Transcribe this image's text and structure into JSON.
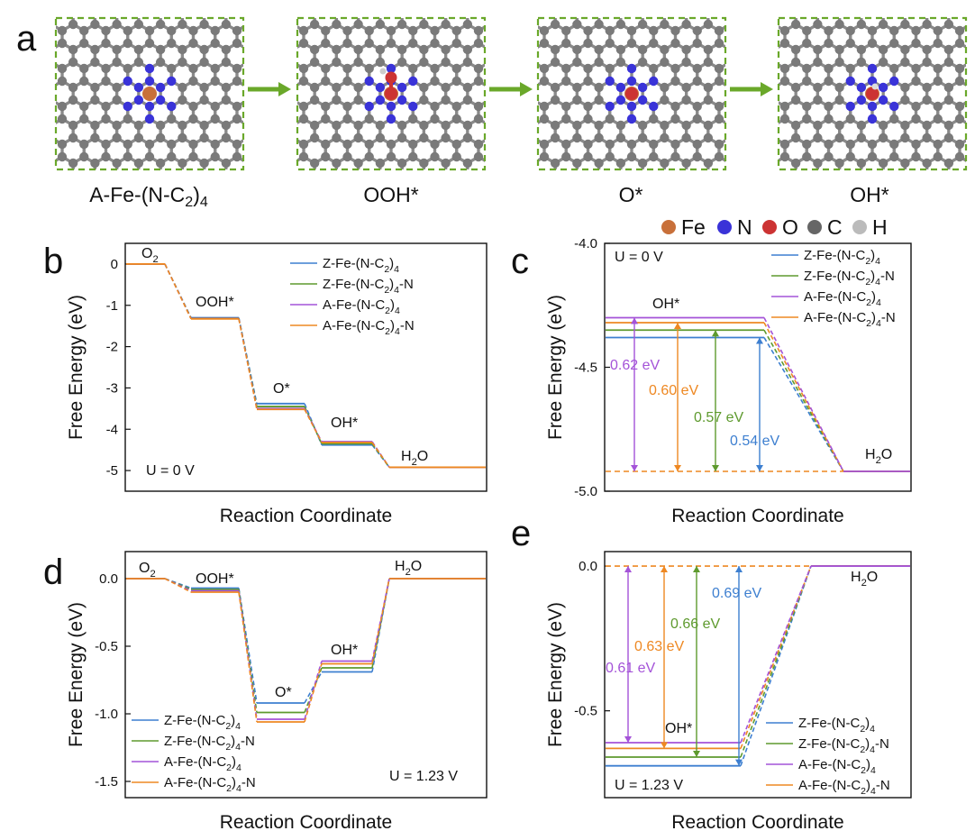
{
  "panel_a": {
    "letter": "a",
    "captions": [
      "A-Fe-(N-C<sub>2</sub>)<sub>4</sub>",
      "OOH*",
      "O*",
      "OH*"
    ],
    "atoms_legend": [
      {
        "label": "Fe",
        "color": "#c8703a"
      },
      {
        "label": "N",
        "color": "#3a33d8"
      },
      {
        "label": "O",
        "color": "#cc3333"
      },
      {
        "label": "C",
        "color": "#666666"
      },
      {
        "label": "H",
        "color": "#bbbbbb"
      }
    ]
  },
  "colors": {
    "z": "#3d7fd0",
    "zn": "#5e9a2e",
    "a": "#a453d8",
    "an": "#ee8822"
  },
  "chart_data": [
    {
      "panel": "b",
      "type": "line",
      "xlabel": "Reaction Coordinate",
      "ylabel": "Free Energy (eV)",
      "ylim": [
        -5.5,
        0.5
      ],
      "yticks": [
        "0",
        "-1",
        "-2",
        "-3",
        "-4",
        "-5"
      ],
      "states": [
        "O<sub>2</sub>",
        "OOH*",
        "O*",
        "OH*",
        "H<sub>2</sub>O"
      ],
      "condition": "U = 0 V",
      "series": [
        {
          "name": "Z-Fe-(N-C<sub>2</sub>)<sub>4</sub>",
          "key": "z",
          "values": [
            0,
            -1.3,
            -3.38,
            -4.38,
            -4.92
          ]
        },
        {
          "name": "Z-Fe-(N-C<sub>2</sub>)<sub>4</sub>-N",
          "key": "zn",
          "values": [
            0,
            -1.31,
            -3.45,
            -4.35,
            -4.92
          ]
        },
        {
          "name": "A-Fe-(N-C<sub>2</sub>)<sub>4</sub>",
          "key": "a",
          "values": [
            0,
            -1.32,
            -3.5,
            -4.3,
            -4.92
          ]
        },
        {
          "name": "A-Fe-(N-C<sub>2</sub>)<sub>4</sub>-N",
          "key": "an",
          "values": [
            0,
            -1.33,
            -3.52,
            -4.32,
            -4.92
          ]
        }
      ]
    },
    {
      "panel": "c",
      "type": "line",
      "xlabel": "Reaction Coordinate",
      "ylabel": "Free Energy (eV)",
      "ylim": [
        -5.0,
        -4.0
      ],
      "yticks": [
        "-4.0",
        "-4.5",
        "-5.0"
      ],
      "states": [
        "OH*",
        "H<sub>2</sub>O"
      ],
      "condition": "U = 0 V",
      "reference": -4.92,
      "series": [
        {
          "name": "Z-Fe-(N-C<sub>2</sub>)<sub>4</sub>",
          "key": "z",
          "values": [
            -4.38,
            -4.92
          ],
          "gap": "0.54 eV"
        },
        {
          "name": "Z-Fe-(N-C<sub>2</sub>)<sub>4</sub>-N",
          "key": "zn",
          "values": [
            -4.35,
            -4.92
          ],
          "gap": "0.57 eV"
        },
        {
          "name": "A-Fe-(N-C<sub>2</sub>)<sub>4</sub>",
          "key": "a",
          "values": [
            -4.3,
            -4.92
          ],
          "gap": "0.62 eV"
        },
        {
          "name": "A-Fe-(N-C<sub>2</sub>)<sub>4</sub>-N",
          "key": "an",
          "values": [
            -4.32,
            -4.92
          ],
          "gap": "0.60 eV"
        }
      ]
    },
    {
      "panel": "d",
      "type": "line",
      "xlabel": "Reaction Coordinate",
      "ylabel": "Free Energy (eV)",
      "ylim": [
        -1.62,
        0.2
      ],
      "yticks": [
        "0.0",
        "-0.5",
        "-1.0",
        "-1.5"
      ],
      "states": [
        "O<sub>2</sub>",
        "OOH*",
        "O*",
        "OH*",
        "H<sub>2</sub>O"
      ],
      "condition": "U = 1.23 V",
      "series": [
        {
          "name": "Z-Fe-(N-C<sub>2</sub>)<sub>4</sub>",
          "key": "z",
          "values": [
            0,
            -0.07,
            -0.92,
            -0.69,
            0
          ]
        },
        {
          "name": "Z-Fe-(N-C<sub>2</sub>)<sub>4</sub>-N",
          "key": "zn",
          "values": [
            0,
            -0.08,
            -0.99,
            -0.66,
            0
          ]
        },
        {
          "name": "A-Fe-(N-C<sub>2</sub>)<sub>4</sub>",
          "key": "a",
          "values": [
            0,
            -0.09,
            -1.04,
            -0.61,
            0
          ]
        },
        {
          "name": "A-Fe-(N-C<sub>2</sub>)<sub>4</sub>-N",
          "key": "an",
          "values": [
            0,
            -0.1,
            -1.06,
            -0.63,
            0
          ]
        }
      ]
    },
    {
      "panel": "e",
      "type": "line",
      "xlabel": "Reaction Coordinate",
      "ylabel": "Free Energy (eV)",
      "ylim": [
        -0.8,
        0.05
      ],
      "yticks": [
        "0.0",
        "-0.5"
      ],
      "states": [
        "OH*",
        "H<sub>2</sub>O"
      ],
      "condition": "U = 1.23 V",
      "reference": 0,
      "series": [
        {
          "name": "Z-Fe-(N-C<sub>2</sub>)<sub>4</sub>",
          "key": "z",
          "values": [
            -0.69,
            0
          ],
          "gap": "0.69 eV"
        },
        {
          "name": "Z-Fe-(N-C<sub>2</sub>)<sub>4</sub>-N",
          "key": "zn",
          "values": [
            -0.66,
            0
          ],
          "gap": "0.66 eV"
        },
        {
          "name": "A-Fe-(N-C<sub>2</sub>)<sub>4</sub>",
          "key": "a",
          "values": [
            -0.61,
            0
          ],
          "gap": "0.61 eV"
        },
        {
          "name": "A-Fe-(N-C<sub>2</sub>)<sub>4</sub>-N",
          "key": "an",
          "values": [
            -0.63,
            0
          ],
          "gap": "0.63 eV"
        }
      ]
    }
  ]
}
